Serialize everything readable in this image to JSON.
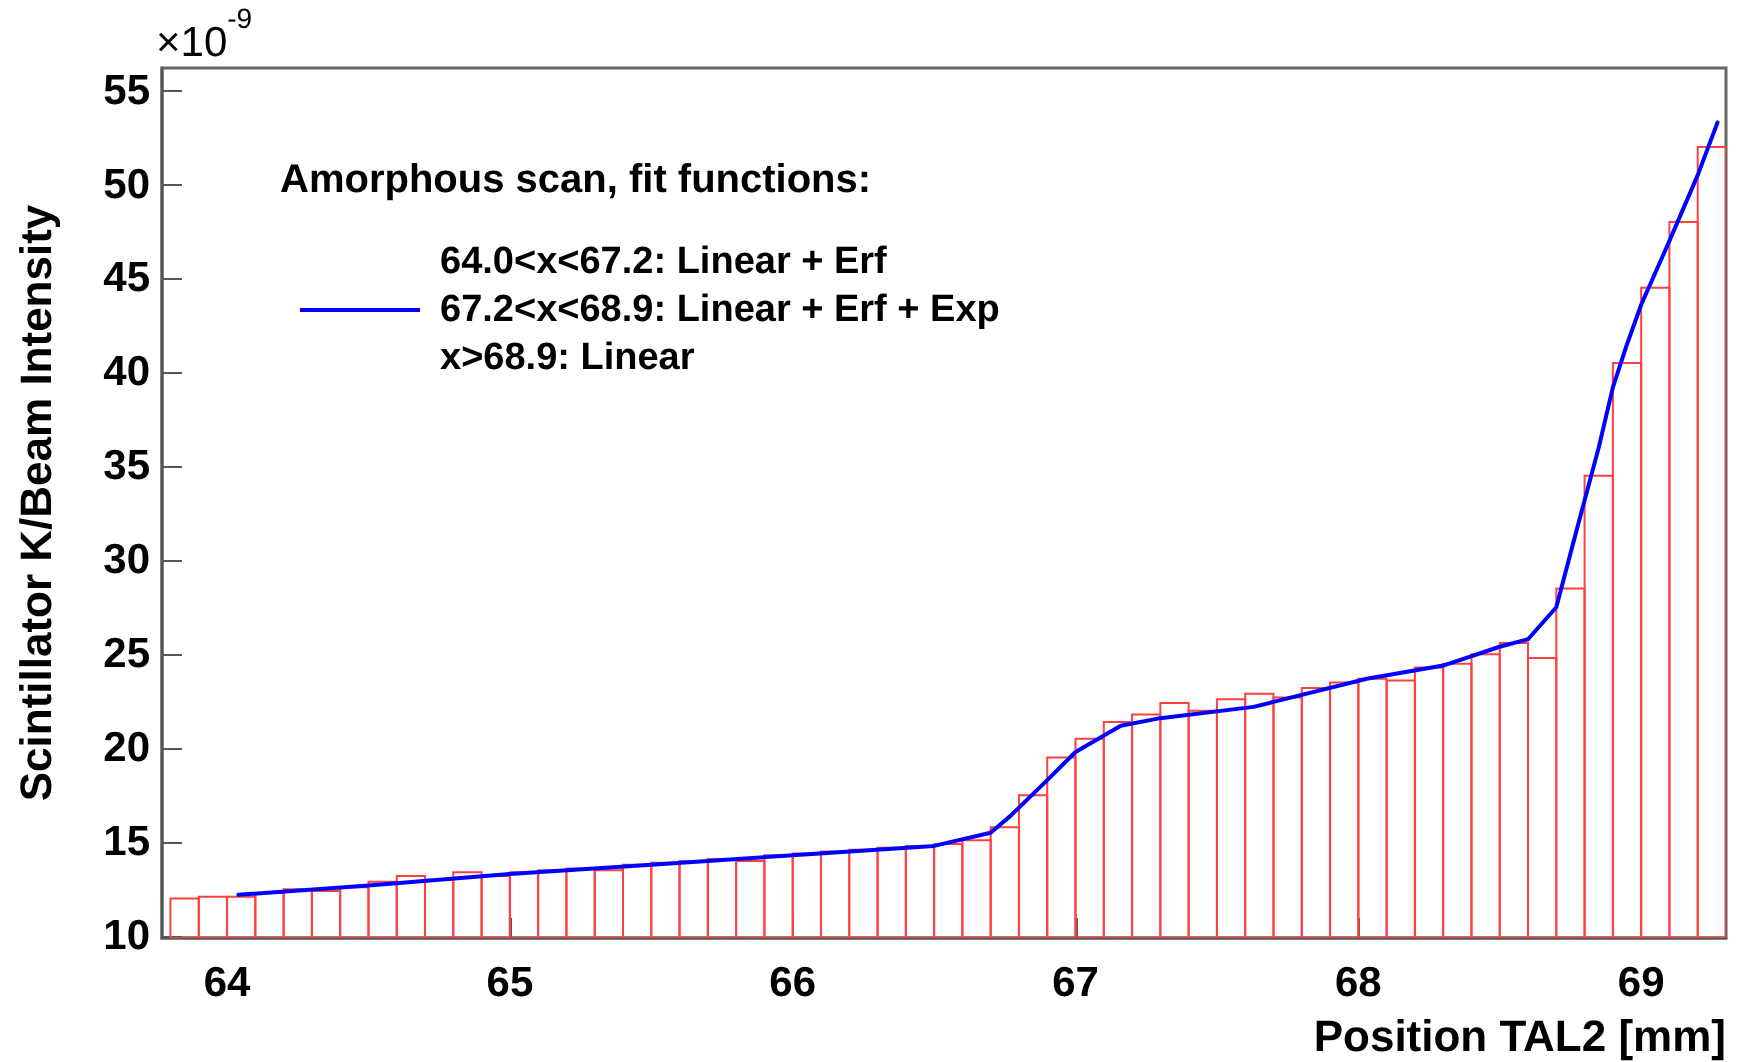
{
  "chart_data": {
    "type": "histogram",
    "xlabel": "Position TAL2 [mm]",
    "ylabel": "Scintillator K/Beam Intensity",
    "legend_title": "Amorphous scan, fit functions:",
    "annotations": [
      "×10$^{-9}$"
    ],
    "bins": [
      63.8,
      63.9,
      64.0,
      64.1,
      64.2,
      64.3,
      64.4,
      64.5,
      64.6,
      64.7,
      64.8,
      64.9,
      65.0,
      65.1,
      65.2,
      65.3,
      65.4,
      65.5,
      65.6,
      65.7,
      65.8,
      65.9,
      66.0,
      66.1,
      66.2,
      66.3,
      66.4,
      66.5,
      66.6,
      66.7,
      66.8,
      66.9,
      67.0,
      67.1,
      67.2,
      67.3,
      67.4,
      67.5,
      67.6,
      67.7,
      67.8,
      67.9,
      68.0,
      68.1,
      68.2,
      68.3,
      68.4,
      68.5,
      68.6,
      68.7,
      68.8,
      68.9,
      69.0,
      69.1,
      69.2,
      69.3
    ],
    "series": [
      {
        "color": "#ff4040",
        "values": [
          12.0,
          12.1,
          12.1,
          12.3,
          12.5,
          12.4,
          12.6,
          12.9,
          13.2,
          13.0,
          13.4,
          13.2,
          13.4,
          13.5,
          13.6,
          13.5,
          13.8,
          13.9,
          14.0,
          14.1,
          14.0,
          14.3,
          14.4,
          14.5,
          14.6,
          14.7,
          14.8,
          14.9,
          15.1,
          15.8,
          17.5,
          19.5,
          20.5,
          21.4,
          21.8,
          22.4,
          22.0,
          22.6,
          22.9,
          22.7,
          23.2,
          23.5,
          23.7,
          23.6,
          24.3,
          24.5,
          25.0,
          25.6,
          24.8,
          28.5,
          34.5,
          40.5,
          44.5,
          48.0,
          52.0
        ]
      },
      {
        "type": "line",
        "name": "64.0<x<67.2: Linear + Erf\n67.2<x<68.9: Linear + Erf + Exp\nx>68.9: Linear",
        "color": "#0000ff",
        "x": [
          64.04,
          64.5,
          65.0,
          65.5,
          66.0,
          66.5,
          66.7,
          66.77,
          66.9,
          67.0,
          67.16,
          67.3,
          67.63,
          68.03,
          68.3,
          68.5,
          68.6,
          68.7,
          68.77,
          68.85,
          68.9,
          68.95,
          69.0,
          69.1,
          69.2,
          69.27
        ],
        "values": [
          12.2,
          12.7,
          13.3,
          13.8,
          14.3,
          14.8,
          15.5,
          16.4,
          18.3,
          19.8,
          21.2,
          21.6,
          22.2,
          23.7,
          24.4,
          25.4,
          25.8,
          27.5,
          31.5,
          36.0,
          39.2,
          41.5,
          43.6,
          47.0,
          50.5,
          53.3
        ]
      }
    ],
    "xlim": [
      63.77,
      69.3
    ],
    "xticks": [
      64,
      65,
      66,
      67,
      68,
      69
    ],
    "ylim": [
      9.9,
      56.2
    ],
    "yticks": [
      10,
      15,
      20,
      25,
      30,
      35,
      40,
      45,
      50,
      55
    ],
    "legend": "top left",
    "grid": false,
    "marker": "none",
    "line_style": "solid"
  }
}
